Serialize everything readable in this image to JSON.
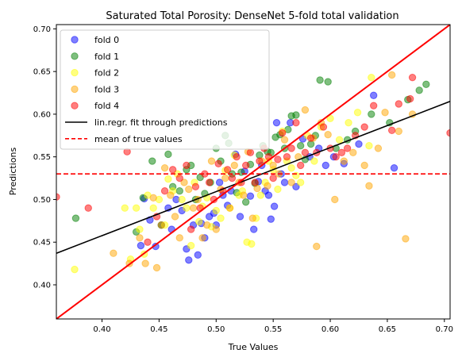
{
  "chart_data": {
    "type": "scatter",
    "title": "Saturated Total Porosity: DenseNet 5-fold total validation",
    "xlabel": "True Values",
    "ylabel": "Predictions",
    "xlim": [
      0.36,
      0.705
    ],
    "ylim": [
      0.36,
      0.705
    ],
    "xticks": [
      "0.40",
      "0.45",
      "0.50",
      "0.55",
      "0.60",
      "0.65",
      "0.70"
    ],
    "yticks": [
      "0.40",
      "0.45",
      "0.50",
      "0.55",
      "0.60",
      "0.65",
      "0.70"
    ],
    "xtick_values": [
      0.4,
      0.45,
      0.5,
      0.55,
      0.6,
      0.65,
      0.7
    ],
    "ytick_values": [
      0.4,
      0.45,
      0.5,
      0.55,
      0.6,
      0.65,
      0.7
    ],
    "legend_position": "top-left",
    "series": [
      {
        "name": "fold 0",
        "color": "#0000ff",
        "points": [
          [
            0.434,
            0.446
          ],
          [
            0.437,
            0.501
          ],
          [
            0.442,
            0.476
          ],
          [
            0.447,
            0.445
          ],
          [
            0.452,
            0.47
          ],
          [
            0.458,
            0.49
          ],
          [
            0.461,
            0.465
          ],
          [
            0.465,
            0.5
          ],
          [
            0.47,
            0.487
          ],
          [
            0.474,
            0.442
          ],
          [
            0.476,
            0.429
          ],
          [
            0.48,
            0.47
          ],
          [
            0.484,
            0.435
          ],
          [
            0.487,
            0.472
          ],
          [
            0.49,
            0.455
          ],
          [
            0.494,
            0.48
          ],
          [
            0.498,
            0.484
          ],
          [
            0.5,
            0.47
          ],
          [
            0.503,
            0.52
          ],
          [
            0.506,
            0.505
          ],
          [
            0.51,
            0.493
          ],
          [
            0.513,
            0.51
          ],
          [
            0.517,
            0.553
          ],
          [
            0.521,
            0.48
          ],
          [
            0.525,
            0.533
          ],
          [
            0.53,
            0.504
          ],
          [
            0.533,
            0.465
          ],
          [
            0.537,
            0.521
          ],
          [
            0.54,
            0.54
          ],
          [
            0.543,
            0.51
          ],
          [
            0.546,
            0.505
          ],
          [
            0.548,
            0.477
          ],
          [
            0.551,
            0.492
          ],
          [
            0.553,
            0.59
          ],
          [
            0.557,
            0.53
          ],
          [
            0.56,
            0.52
          ],
          [
            0.565,
            0.59
          ],
          [
            0.57,
            0.515
          ],
          [
            0.576,
            0.571
          ],
          [
            0.582,
            0.55
          ],
          [
            0.59,
            0.56
          ],
          [
            0.596,
            0.54
          ],
          [
            0.603,
            0.55
          ],
          [
            0.612,
            0.542
          ],
          [
            0.625,
            0.565
          ],
          [
            0.638,
            0.622
          ],
          [
            0.656,
            0.537
          ]
        ]
      },
      {
        "name": "fold 1",
        "color": "#008000",
        "points": [
          [
            0.377,
            0.478
          ],
          [
            0.43,
            0.462
          ],
          [
            0.436,
            0.502
          ],
          [
            0.444,
            0.545
          ],
          [
            0.452,
            0.47
          ],
          [
            0.458,
            0.553
          ],
          [
            0.462,
            0.515
          ],
          [
            0.468,
            0.51
          ],
          [
            0.474,
            0.535
          ],
          [
            0.478,
            0.54
          ],
          [
            0.482,
            0.5
          ],
          [
            0.486,
            0.526
          ],
          [
            0.49,
            0.507
          ],
          [
            0.495,
            0.52
          ],
          [
            0.5,
            0.56
          ],
          [
            0.504,
            0.545
          ],
          [
            0.508,
            0.575
          ],
          [
            0.511,
            0.566
          ],
          [
            0.514,
            0.53
          ],
          [
            0.518,
            0.508
          ],
          [
            0.522,
            0.532
          ],
          [
            0.526,
            0.497
          ],
          [
            0.53,
            0.541
          ],
          [
            0.534,
            0.519
          ],
          [
            0.538,
            0.552
          ],
          [
            0.541,
            0.563
          ],
          [
            0.545,
            0.556
          ],
          [
            0.548,
            0.555
          ],
          [
            0.552,
            0.573
          ],
          [
            0.556,
            0.576
          ],
          [
            0.56,
            0.56
          ],
          [
            0.563,
            0.582
          ],
          [
            0.566,
            0.598
          ],
          [
            0.57,
            0.599
          ],
          [
            0.574,
            0.563
          ],
          [
            0.578,
            0.547
          ],
          [
            0.583,
            0.565
          ],
          [
            0.587,
            0.575
          ],
          [
            0.591,
            0.64
          ],
          [
            0.598,
            0.638
          ],
          [
            0.605,
            0.56
          ],
          [
            0.615,
            0.57
          ],
          [
            0.622,
            0.58
          ],
          [
            0.636,
            0.6
          ],
          [
            0.652,
            0.59
          ],
          [
            0.668,
            0.617
          ],
          [
            0.678,
            0.628
          ],
          [
            0.684,
            0.635
          ]
        ]
      },
      {
        "name": "fold 2",
        "color": "#ffff00",
        "points": [
          [
            0.376,
            0.418
          ],
          [
            0.42,
            0.49
          ],
          [
            0.425,
            0.43
          ],
          [
            0.43,
            0.49
          ],
          [
            0.433,
            0.465
          ],
          [
            0.437,
            0.436
          ],
          [
            0.44,
            0.505
          ],
          [
            0.445,
            0.49
          ],
          [
            0.45,
            0.5
          ],
          [
            0.455,
            0.47
          ],
          [
            0.458,
            0.524
          ],
          [
            0.462,
            0.51
          ],
          [
            0.466,
            0.53
          ],
          [
            0.47,
            0.5
          ],
          [
            0.474,
            0.49
          ],
          [
            0.478,
            0.446
          ],
          [
            0.481,
            0.52
          ],
          [
            0.485,
            0.474
          ],
          [
            0.488,
            0.492
          ],
          [
            0.492,
            0.502
          ],
          [
            0.496,
            0.468
          ],
          [
            0.5,
            0.487
          ],
          [
            0.504,
            0.478
          ],
          [
            0.508,
            0.534
          ],
          [
            0.512,
            0.49
          ],
          [
            0.516,
            0.552
          ],
          [
            0.52,
            0.505
          ],
          [
            0.523,
            0.51
          ],
          [
            0.527,
            0.45
          ],
          [
            0.531,
            0.448
          ],
          [
            0.535,
            0.478
          ],
          [
            0.539,
            0.505
          ],
          [
            0.543,
            0.52
          ],
          [
            0.546,
            0.545
          ],
          [
            0.55,
            0.535
          ],
          [
            0.554,
            0.512
          ],
          [
            0.558,
            0.58
          ],
          [
            0.562,
            0.545
          ],
          [
            0.566,
            0.537
          ],
          [
            0.57,
            0.528
          ],
          [
            0.574,
            0.52
          ],
          [
            0.58,
            0.575
          ],
          [
            0.586,
            0.545
          ],
          [
            0.592,
            0.585
          ],
          [
            0.6,
            0.595
          ],
          [
            0.608,
            0.57
          ],
          [
            0.616,
            0.59
          ],
          [
            0.624,
            0.602
          ],
          [
            0.634,
            0.563
          ],
          [
            0.636,
            0.643
          ]
        ]
      },
      {
        "name": "fold 3",
        "color": "#ffa500",
        "points": [
          [
            0.41,
            0.437
          ],
          [
            0.424,
            0.425
          ],
          [
            0.433,
            0.455
          ],
          [
            0.438,
            0.425
          ],
          [
            0.445,
            0.502
          ],
          [
            0.448,
            0.42
          ],
          [
            0.452,
            0.47
          ],
          [
            0.455,
            0.537
          ],
          [
            0.46,
            0.505
          ],
          [
            0.464,
            0.48
          ],
          [
            0.468,
            0.455
          ],
          [
            0.472,
            0.52
          ],
          [
            0.476,
            0.512
          ],
          [
            0.48,
            0.49
          ],
          [
            0.484,
            0.5
          ],
          [
            0.488,
            0.455
          ],
          [
            0.492,
            0.47
          ],
          [
            0.496,
            0.545
          ],
          [
            0.5,
            0.465
          ],
          [
            0.504,
            0.512
          ],
          [
            0.508,
            0.525
          ],
          [
            0.512,
            0.49
          ],
          [
            0.516,
            0.54
          ],
          [
            0.52,
            0.52
          ],
          [
            0.524,
            0.505
          ],
          [
            0.528,
            0.556
          ],
          [
            0.532,
            0.478
          ],
          [
            0.536,
            0.513
          ],
          [
            0.54,
            0.545
          ],
          [
            0.545,
            0.516
          ],
          [
            0.55,
            0.54
          ],
          [
            0.555,
            0.53
          ],
          [
            0.56,
            0.57
          ],
          [
            0.566,
            0.52
          ],
          [
            0.572,
            0.55
          ],
          [
            0.578,
            0.605
          ],
          [
            0.585,
            0.572
          ],
          [
            0.588,
            0.445
          ],
          [
            0.592,
            0.59
          ],
          [
            0.598,
            0.576
          ],
          [
            0.604,
            0.5
          ],
          [
            0.612,
            0.545
          ],
          [
            0.62,
            0.555
          ],
          [
            0.63,
            0.54
          ],
          [
            0.634,
            0.516
          ],
          [
            0.642,
            0.56
          ],
          [
            0.648,
            0.602
          ],
          [
            0.654,
            0.646
          ],
          [
            0.66,
            0.58
          ],
          [
            0.666,
            0.454
          ],
          [
            0.672,
            0.6
          ]
        ]
      },
      {
        "name": "fold 4",
        "color": "#ff0000",
        "points": [
          [
            0.36,
            0.503
          ],
          [
            0.388,
            0.49
          ],
          [
            0.422,
            0.556
          ],
          [
            0.44,
            0.45
          ],
          [
            0.448,
            0.48
          ],
          [
            0.455,
            0.51
          ],
          [
            0.462,
            0.535
          ],
          [
            0.468,
            0.525
          ],
          [
            0.474,
            0.54
          ],
          [
            0.478,
            0.465
          ],
          [
            0.482,
            0.515
          ],
          [
            0.486,
            0.49
          ],
          [
            0.49,
            0.53
          ],
          [
            0.494,
            0.52
          ],
          [
            0.498,
            0.5
          ],
          [
            0.502,
            0.542
          ],
          [
            0.506,
            0.51
          ],
          [
            0.51,
            0.535
          ],
          [
            0.514,
            0.525
          ],
          [
            0.518,
            0.55
          ],
          [
            0.522,
            0.52
          ],
          [
            0.526,
            0.54
          ],
          [
            0.53,
            0.555
          ],
          [
            0.534,
            0.52
          ],
          [
            0.538,
            0.545
          ],
          [
            0.542,
            0.56
          ],
          [
            0.546,
            0.55
          ],
          [
            0.55,
            0.525
          ],
          [
            0.554,
            0.547
          ],
          [
            0.558,
            0.578
          ],
          [
            0.562,
            0.55
          ],
          [
            0.566,
            0.56
          ],
          [
            0.57,
            0.59
          ],
          [
            0.574,
            0.54
          ],
          [
            0.578,
            0.555
          ],
          [
            0.583,
            0.572
          ],
          [
            0.588,
            0.555
          ],
          [
            0.594,
            0.585
          ],
          [
            0.6,
            0.56
          ],
          [
            0.605,
            0.55
          ],
          [
            0.61,
            0.555
          ],
          [
            0.615,
            0.56
          ],
          [
            0.622,
            0.575
          ],
          [
            0.63,
            0.585
          ],
          [
            0.638,
            0.61
          ],
          [
            0.654,
            0.581
          ],
          [
            0.66,
            0.612
          ],
          [
            0.67,
            0.618
          ],
          [
            0.672,
            0.643
          ],
          [
            0.705,
            0.578
          ]
        ]
      }
    ],
    "fit_line": {
      "name": "lin.regr. fit through predictions",
      "color": "#000000",
      "x": [
        0.36,
        0.705
      ],
      "y": [
        0.437,
        0.615
      ]
    },
    "identity_line": {
      "color": "#ff0000",
      "x": [
        0.36,
        0.705
      ],
      "y": [
        0.36,
        0.705
      ]
    },
    "mean_line": {
      "name": "mean of true values",
      "color": "#ff0000",
      "y": 0.53
    }
  }
}
